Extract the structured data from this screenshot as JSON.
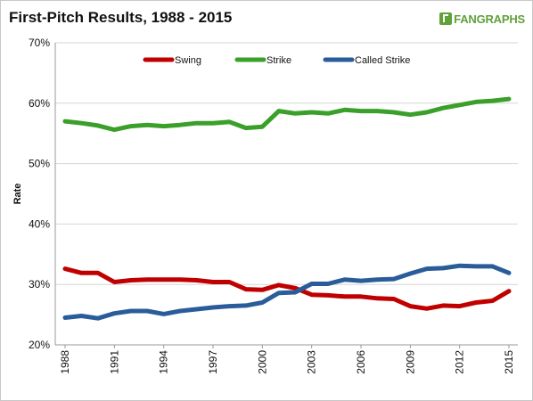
{
  "header": {
    "title": "First-Pitch Results, 1988 - 2015",
    "logo_text": "FANGRAPHS"
  },
  "chart_data": {
    "type": "line",
    "title": "First-Pitch Results, 1988 - 2015",
    "xlabel": "",
    "ylabel": "Rate",
    "x": [
      1988,
      1989,
      1990,
      1991,
      1992,
      1993,
      1994,
      1995,
      1996,
      1997,
      1998,
      1999,
      2000,
      2001,
      2002,
      2003,
      2004,
      2005,
      2006,
      2007,
      2008,
      2009,
      2010,
      2011,
      2012,
      2013,
      2014,
      2015
    ],
    "x_ticks": [
      "1988",
      "1991",
      "1994",
      "1997",
      "2000",
      "2003",
      "2006",
      "2009",
      "2012",
      "2015"
    ],
    "y_ticks": [
      "20%",
      "30%",
      "40%",
      "50%",
      "60%",
      "70%"
    ],
    "ylim": [
      20,
      70
    ],
    "grid": true,
    "legend_position": "top-center",
    "series": [
      {
        "name": "Swing",
        "color": "#c00000",
        "values": [
          32.6,
          31.9,
          31.9,
          30.4,
          30.7,
          30.8,
          30.8,
          30.8,
          30.7,
          30.4,
          30.4,
          29.2,
          29.1,
          29.9,
          29.4,
          28.3,
          28.2,
          28.0,
          28.0,
          27.7,
          27.6,
          26.4,
          26.0,
          26.5,
          26.4,
          27.0,
          27.3,
          28.9
        ]
      },
      {
        "name": "Strike",
        "color": "#3aa02a",
        "values": [
          57.0,
          56.7,
          56.3,
          55.6,
          56.2,
          56.4,
          56.2,
          56.4,
          56.7,
          56.7,
          56.9,
          55.9,
          56.1,
          58.7,
          58.3,
          58.5,
          58.3,
          58.9,
          58.7,
          58.7,
          58.5,
          58.1,
          58.5,
          59.2,
          59.7,
          60.2,
          60.4,
          60.7
        ]
      },
      {
        "name": "Called Strike",
        "color": "#2b5c9a",
        "values": [
          24.5,
          24.8,
          24.4,
          25.2,
          25.6,
          25.6,
          25.1,
          25.6,
          25.9,
          26.2,
          26.4,
          26.5,
          27.0,
          28.6,
          28.7,
          30.1,
          30.1,
          30.8,
          30.6,
          30.8,
          30.9,
          31.8,
          32.6,
          32.7,
          33.1,
          33.0,
          33.0,
          31.9
        ]
      }
    ]
  }
}
